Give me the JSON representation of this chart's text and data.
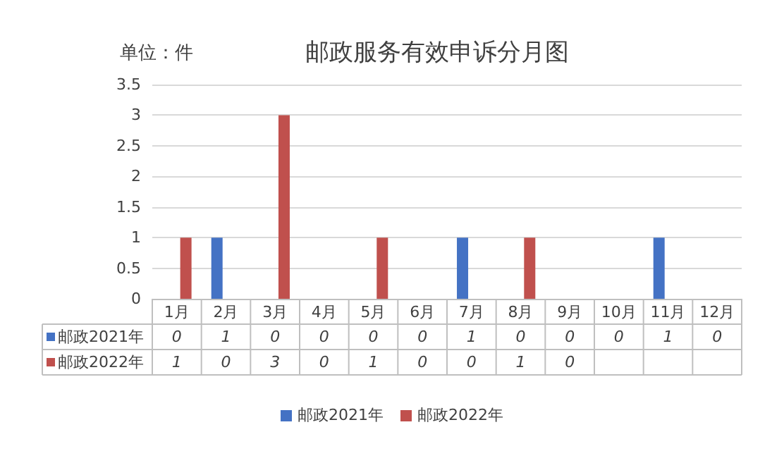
{
  "chart_data": {
    "type": "bar",
    "title": "邮政服务有效申诉分月图",
    "annotations": [
      "单位：件"
    ],
    "categories": [
      "1月",
      "2月",
      "3月",
      "4月",
      "5月",
      "6月",
      "7月",
      "8月",
      "9月",
      "10月",
      "11月",
      "12月"
    ],
    "series": [
      {
        "name": "邮政2021年",
        "color": "#4472c4",
        "values": [
          0,
          1,
          0,
          0,
          0,
          0,
          1,
          0,
          0,
          0,
          1,
          0
        ]
      },
      {
        "name": "邮政2022年",
        "color": "#c0504d",
        "values": [
          1,
          0,
          3,
          0,
          1,
          0,
          0,
          1,
          0,
          null,
          null,
          null
        ]
      }
    ],
    "ylim": [
      0,
      3.5
    ],
    "yticks": [
      0,
      0.5,
      1,
      1.5,
      2,
      2.5,
      3,
      3.5
    ],
    "grid": "y",
    "legend": "bottom",
    "data_labels": true
  }
}
